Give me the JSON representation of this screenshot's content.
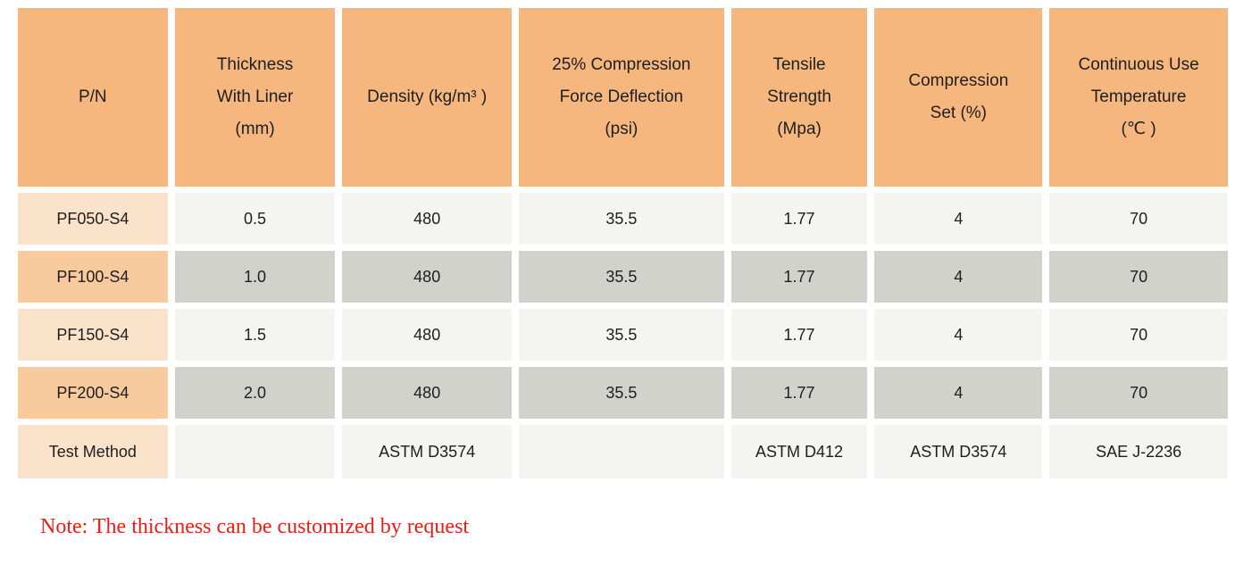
{
  "colors": {
    "header_background": "#F6B77E",
    "pn_row_light": "#FBE3CB",
    "pn_row_dark": "#F8CA9E",
    "value_row_light": "#F4F4F0",
    "value_row_dark": "#D2D2CC",
    "text": "#1E1E1E",
    "note_red": "#E32119"
  },
  "table": {
    "headers": [
      {
        "label": "P/N"
      },
      {
        "label": "Thickness\nWith Liner\n(mm)"
      },
      {
        "label": "Density (kg/m³ )"
      },
      {
        "label": "25% Compression\nForce Deflection\n(psi)"
      },
      {
        "label": "Tensile\nStrength\n(Mpa)"
      },
      {
        "label": "Compression\nSet (%)"
      },
      {
        "label": "Continuous Use\nTemperature\n(℃ )"
      }
    ],
    "rows": [
      {
        "pn": "PF050-S4",
        "values": [
          "0.5",
          "480",
          "35.5",
          "1.77",
          "4",
          "70"
        ]
      },
      {
        "pn": "PF100-S4",
        "values": [
          "1.0",
          "480",
          "35.5",
          "1.77",
          "4",
          "70"
        ]
      },
      {
        "pn": "PF150-S4",
        "values": [
          "1.5",
          "480",
          "35.5",
          "1.77",
          "4",
          "70"
        ]
      },
      {
        "pn": "PF200-S4",
        "values": [
          "2.0",
          "480",
          "35.5",
          "1.77",
          "4",
          "70"
        ]
      },
      {
        "pn": "Test Method",
        "values": [
          "",
          "ASTM D3574",
          "",
          "ASTM D412",
          "ASTM D3574",
          "SAE J-2236"
        ]
      }
    ]
  },
  "note": "Note: The thickness can be customized by request"
}
